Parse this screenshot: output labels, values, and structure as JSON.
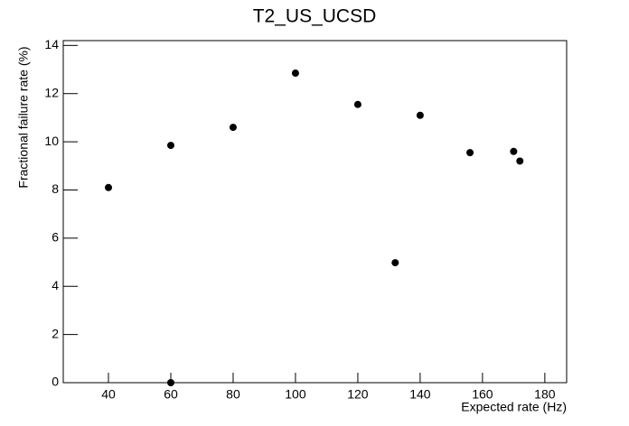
{
  "chart_data": {
    "type": "scatter",
    "title": "T2_US_UCSD",
    "x_label": "Expected rate (Hz)",
    "y_label": "Fractional failure rate (%)",
    "x": [
      40,
      60,
      60,
      80,
      100,
      120,
      132,
      140,
      156,
      170,
      172
    ],
    "values": [
      8.1,
      9.85,
      0,
      10.6,
      12.85,
      11.55,
      4.98,
      11.1,
      9.55,
      9.6,
      9.2
    ],
    "color": "#000000",
    "xlim": [
      25.5,
      187
    ],
    "xticks": [
      40,
      60,
      80,
      100,
      120,
      140,
      160,
      180
    ],
    "ylim": [
      0,
      14.2
    ],
    "yticks": [
      0,
      2,
      4,
      6,
      8,
      10,
      12,
      14
    ]
  }
}
